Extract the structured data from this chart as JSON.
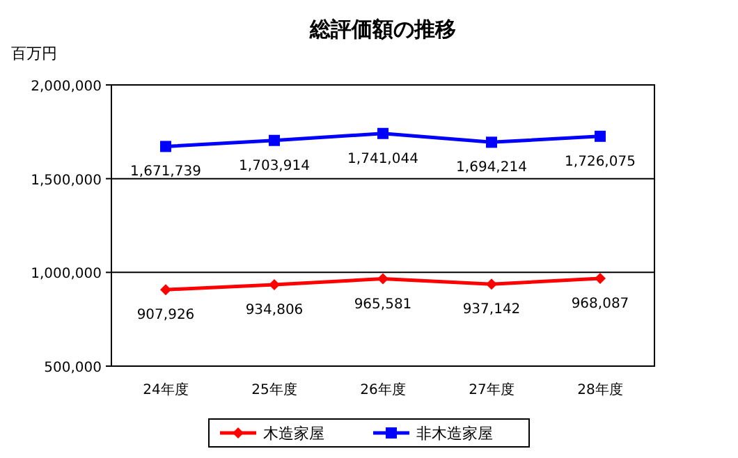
{
  "chart_data": {
    "type": "line",
    "title": "総評価額の推移",
    "ylabel": "百万円",
    "categories": [
      "24年度",
      "25年度",
      "26年度",
      "27年度",
      "28年度"
    ],
    "series": [
      {
        "name": "木造家屋",
        "color": "#ff0000",
        "marker": "diamond",
        "values": [
          907926,
          934806,
          965581,
          937142,
          968087
        ],
        "value_labels": [
          "907,926",
          "934,806",
          "965,581",
          "937,142",
          "968,087"
        ]
      },
      {
        "name": "非木造家屋",
        "color": "#0000ff",
        "marker": "square",
        "values": [
          1671739,
          1703914,
          1741044,
          1694214,
          1726075
        ],
        "value_labels": [
          "1,671,739",
          "1,703,914",
          "1,741,044",
          "1,694,214",
          "1,726,075"
        ]
      }
    ],
    "ylim": [
      500000,
      2000000
    ],
    "yticks": [
      {
        "value": 500000,
        "label": "500,000"
      },
      {
        "value": 1000000,
        "label": "1,000,000"
      },
      {
        "value": 1500000,
        "label": "1,500,000"
      },
      {
        "value": 2000000,
        "label": "2,000,000"
      }
    ],
    "grid": "y",
    "legend": "bottom"
  }
}
